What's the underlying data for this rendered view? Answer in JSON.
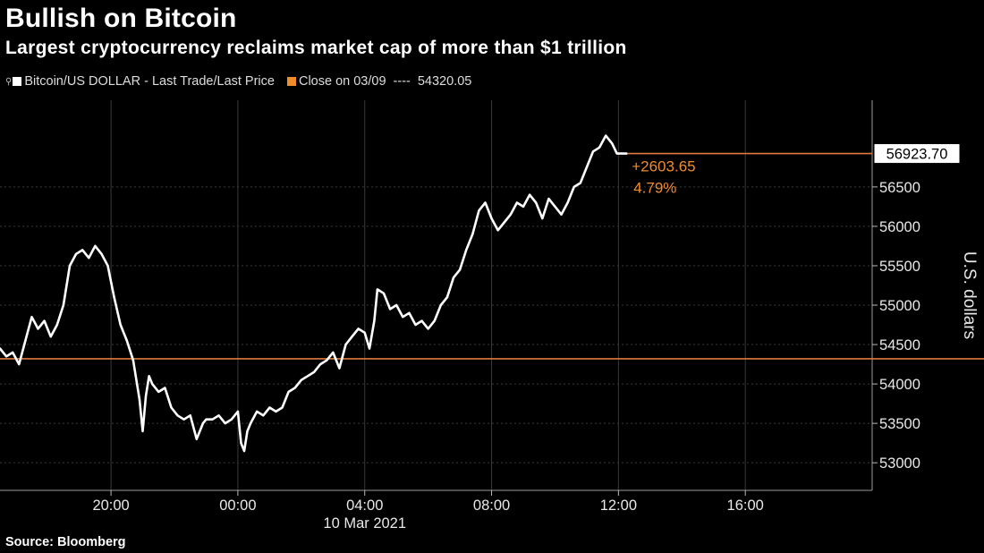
{
  "header": {
    "title": "Bullish on Bitcoin",
    "subtitle": "Largest cryptocurrency reclaims market cap of more than $1 trillion"
  },
  "legend": {
    "series_label": "Bitcoin/US DOLLAR - Last Trade/Last Price",
    "close_label": "Close on 03/09",
    "close_dashes": "----",
    "close_value": "54320.05",
    "series_color": "#ffffff",
    "close_color": "#f08c2c"
  },
  "footer": {
    "source": "Source: Bloomberg"
  },
  "colors": {
    "background": "#000000",
    "line": "#ffffff",
    "reference": "#e07a3c",
    "change_text": "#f08c2c",
    "grid": "#3a3a3a"
  },
  "chart_data": {
    "type": "line",
    "ylabel": "U.S. dollars",
    "date_label": "10 Mar 2021",
    "xlim_hours": [
      16.5,
      19.5
    ],
    "ylim": [
      52650,
      57600
    ],
    "x_ticks": [
      {
        "h": 20,
        "label": "20:00"
      },
      {
        "h": 24,
        "label": "00:00"
      },
      {
        "h": 28,
        "label": "04:00"
      },
      {
        "h": 32,
        "label": "08:00"
      },
      {
        "h": 36,
        "label": "12:00"
      },
      {
        "h": 40,
        "label": "16:00"
      }
    ],
    "y_ticks": [
      53000,
      53500,
      54000,
      54500,
      55000,
      55500,
      56000,
      56500
    ],
    "reference": {
      "name": "Close on 03/09",
      "value": 54320.05
    },
    "last": {
      "value": 56923.7,
      "label": "56923.70"
    },
    "change": {
      "abs": "+2603.65",
      "pct": "4.79%"
    },
    "series": [
      {
        "name": "Bitcoin/US DOLLAR - Last Trade/Last Price",
        "x": [
          16.5,
          16.7,
          16.9,
          17.1,
          17.3,
          17.5,
          17.7,
          17.9,
          18.1,
          18.3,
          18.5,
          18.7,
          18.9,
          19.1,
          19.3,
          19.5,
          19.7,
          19.9,
          20.1,
          20.3,
          20.5,
          20.7,
          20.9,
          21.0,
          21.1,
          21.2,
          21.3,
          21.5,
          21.7,
          21.9,
          22.1,
          22.3,
          22.5,
          22.7,
          22.9,
          23.0,
          23.2,
          23.4,
          23.6,
          23.8,
          24.0,
          24.1,
          24.2,
          24.3,
          24.4,
          24.6,
          24.8,
          25.0,
          25.2,
          25.4,
          25.6,
          25.8,
          26.0,
          26.2,
          26.4,
          26.6,
          26.8,
          27.0,
          27.2,
          27.4,
          27.6,
          27.8,
          28.0,
          28.15,
          28.3,
          28.4,
          28.6,
          28.8,
          29.0,
          29.2,
          29.4,
          29.6,
          29.8,
          30.0,
          30.2,
          30.4,
          30.6,
          30.8,
          31.0,
          31.2,
          31.4,
          31.6,
          31.8,
          32.0,
          32.2,
          32.4,
          32.6,
          32.8,
          33.0,
          33.2,
          33.4,
          33.6,
          33.8,
          34.0,
          34.2,
          34.4,
          34.6,
          34.8,
          35.0,
          35.2,
          35.4,
          35.6,
          35.8,
          35.95,
          36.05,
          36.15,
          36.25
        ],
        "y": [
          54450,
          54350,
          54400,
          54250,
          54550,
          54850,
          54700,
          54800,
          54600,
          54750,
          55000,
          55500,
          55650,
          55700,
          55600,
          55750,
          55650,
          55500,
          55100,
          54750,
          54550,
          54300,
          53800,
          53400,
          53850,
          54100,
          54000,
          53900,
          53950,
          53700,
          53600,
          53550,
          53600,
          53300,
          53500,
          53550,
          53550,
          53600,
          53500,
          53550,
          53650,
          53250,
          53150,
          53400,
          53500,
          53650,
          53600,
          53700,
          53650,
          53700,
          53900,
          53950,
          54050,
          54100,
          54150,
          54250,
          54300,
          54400,
          54200,
          54500,
          54600,
          54700,
          54650,
          54450,
          54800,
          55200,
          55150,
          54950,
          55000,
          54850,
          54900,
          54750,
          54800,
          54700,
          54800,
          55000,
          55100,
          55350,
          55450,
          55700,
          55900,
          56200,
          56300,
          56100,
          55950,
          56050,
          56150,
          56300,
          56250,
          56400,
          56300,
          56100,
          56350,
          56250,
          56150,
          56300,
          56500,
          56550,
          56750,
          56950,
          57000,
          57150,
          57050,
          56923.7,
          56923.7,
          56923.7,
          56923.7
        ]
      }
    ]
  }
}
